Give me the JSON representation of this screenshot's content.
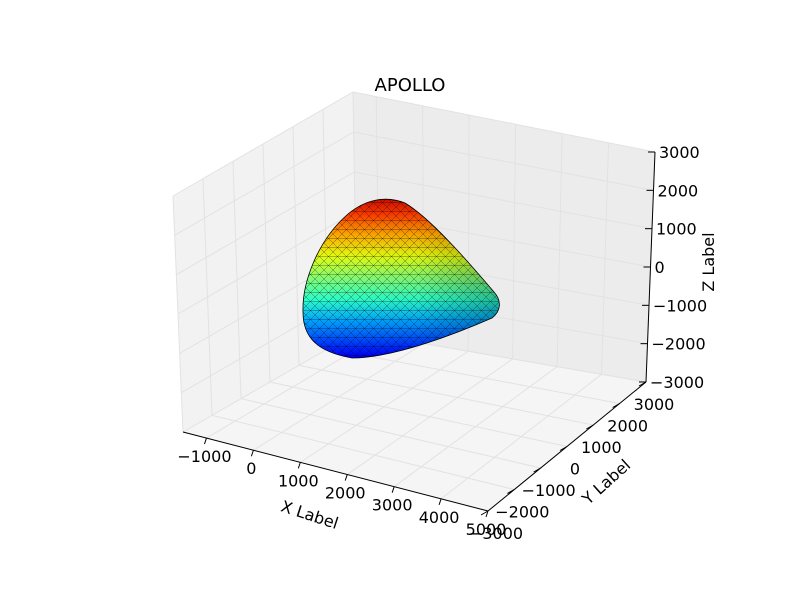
{
  "chart_data": {
    "type": "3d-surface",
    "title": "APOLLO",
    "xlabel": "X Label",
    "ylabel": "Y Label",
    "zlabel": "Z Label",
    "xlim": [
      -1500,
      5000
    ],
    "ylim": [
      -3000,
      3000
    ],
    "zlim": [
      -3000,
      3000
    ],
    "x_ticks": [
      "−1000",
      "0",
      "1000",
      "2000",
      "3000",
      "4000",
      "5000"
    ],
    "y_ticks": [
      "−3000",
      "−2000",
      "−1000",
      "0",
      "1000",
      "2000",
      "3000"
    ],
    "z_ticks": [
      "−3000",
      "−2000",
      "−1000",
      "0",
      "1000",
      "2000",
      "3000"
    ],
    "grid": true,
    "colormap": "jet",
    "mesh_edge_color": "#000000",
    "surface": {
      "shape": "truncated cone (capsule)",
      "x_range": [
        0,
        3900
      ],
      "radius_range": [
        2000,
        100
      ]
    }
  }
}
